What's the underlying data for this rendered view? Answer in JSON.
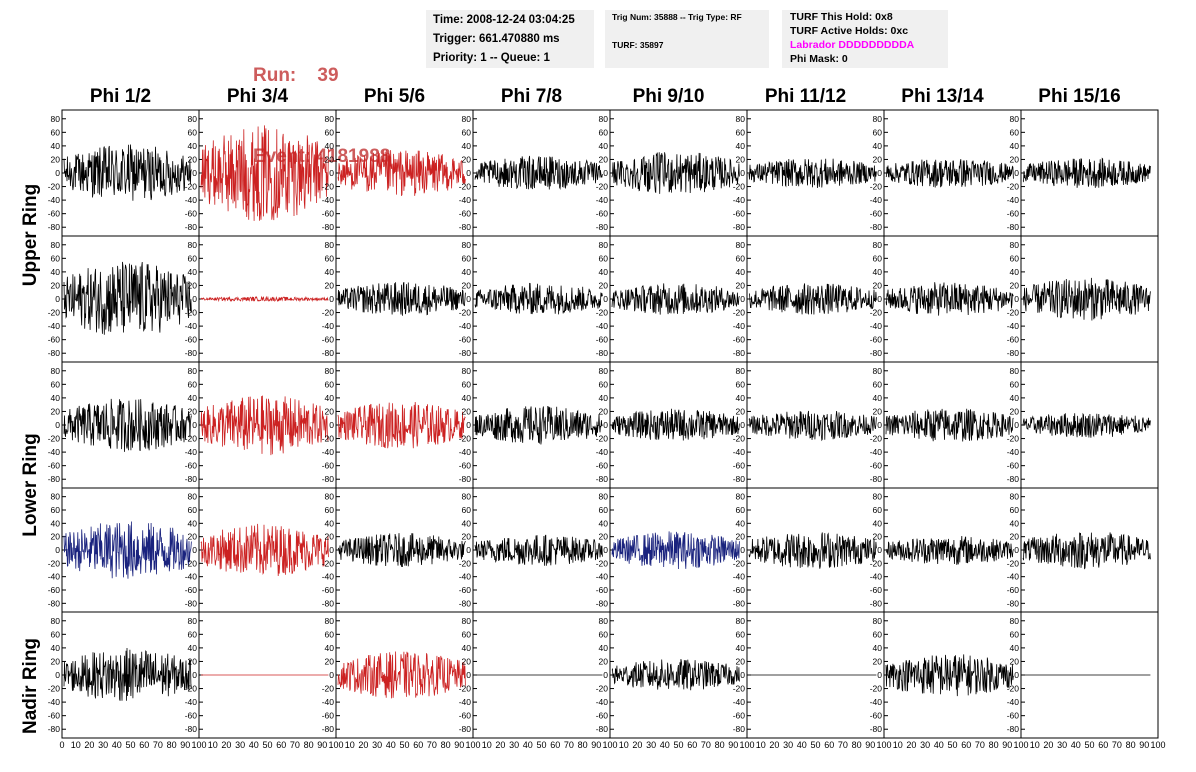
{
  "run_label": "Run:",
  "run_value": "39",
  "event_label": "Event:",
  "event_value": "4181988",
  "time_box": {
    "time": "Time: 2008-12-24 03:04:25",
    "trigger": "Trigger: 661.470880 ms",
    "priority": "Priority: 1 -- Queue: 1"
  },
  "trig_box": {
    "trig": "Trig Num: 35888 -- Trig Type: RF",
    "turf": "TURF: 35897"
  },
  "turf_box": {
    "hold": "TURF This Hold: 0x8",
    "active": "TURF Active Holds: 0xc",
    "labrador": "Labrador DDDDDDDDDA",
    "phimask": "Phi Mask: 0"
  },
  "columns": [
    "Phi 1/2",
    "Phi 3/4",
    "Phi 5/6",
    "Phi 7/8",
    "Phi 9/10",
    "Phi 11/12",
    "Phi 13/14",
    "Phi 15/16"
  ],
  "rows": [
    "Upper Ring",
    "Lower Ring",
    "Nadir Ring"
  ],
  "y_ticks": [
    "80",
    "60",
    "40",
    "20",
    "0",
    "-20",
    "-40",
    "-60",
    "-80"
  ],
  "x_ticks_first": [
    "0",
    "10",
    "20",
    "30",
    "40",
    "50",
    "60",
    "70",
    "80",
    "90",
    "100"
  ],
  "x_ticks_other": [
    "10",
    "20",
    "30",
    "40",
    "50",
    "60",
    "70",
    "80",
    "90",
    "100"
  ],
  "colors": {
    "normal": "#000000",
    "triggered": "#cc2222",
    "other": "#1a237e",
    "title": "#cd5c5c"
  },
  "panels": [
    [
      {
        "c": "normal",
        "a": 27
      },
      {
        "c": "triggered",
        "a": 45
      },
      {
        "c": "triggered",
        "a": 22
      },
      {
        "c": "normal",
        "a": 16
      },
      {
        "c": "normal",
        "a": 20
      },
      {
        "c": "normal",
        "a": 14
      },
      {
        "c": "normal",
        "a": 14
      },
      {
        "c": "normal",
        "a": 14
      }
    ],
    [
      {
        "c": "normal",
        "a": 36
      },
      {
        "c": "triggered",
        "a": 2
      },
      {
        "c": "normal",
        "a": 16
      },
      {
        "c": "normal",
        "a": 15
      },
      {
        "c": "normal",
        "a": 15
      },
      {
        "c": "normal",
        "a": 15
      },
      {
        "c": "normal",
        "a": 16
      },
      {
        "c": "normal",
        "a": 20
      }
    ],
    [
      {
        "c": "normal",
        "a": 25
      },
      {
        "c": "triggered",
        "a": 28
      },
      {
        "c": "triggered",
        "a": 22
      },
      {
        "c": "normal",
        "a": 18
      },
      {
        "c": "normal",
        "a": 15
      },
      {
        "c": "normal",
        "a": 14
      },
      {
        "c": "normal",
        "a": 16
      },
      {
        "c": "normal",
        "a": 12
      }
    ],
    [
      {
        "c": "other",
        "a": 28
      },
      {
        "c": "triggered",
        "a": 25
      },
      {
        "c": "normal",
        "a": 16
      },
      {
        "c": "normal",
        "a": 15
      },
      {
        "c": "other",
        "a": 18
      },
      {
        "c": "normal",
        "a": 18
      },
      {
        "c": "normal",
        "a": 14
      },
      {
        "c": "normal",
        "a": 18
      }
    ],
    [
      {
        "c": "normal",
        "a": 25
      },
      {
        "c": "triggered",
        "a": 0
      },
      {
        "c": "triggered",
        "a": 22
      },
      {
        "c": "normal",
        "a": 0
      },
      {
        "c": "normal",
        "a": 15
      },
      {
        "c": "normal",
        "a": 0
      },
      {
        "c": "normal",
        "a": 20
      },
      {
        "c": "normal",
        "a": 0
      }
    ]
  ]
}
